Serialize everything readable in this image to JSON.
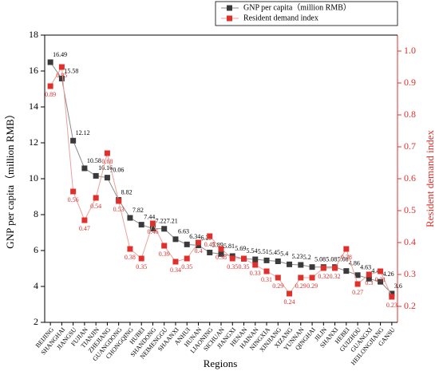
{
  "chart_data": {
    "type": "line",
    "xlabel": "Regions",
    "ylabel": "GNP per capita（million RMB）",
    "y2label": "Resident demand index",
    "categories": [
      "BEIJING",
      "SHANGHAI",
      "JIANGSU",
      "FUJIAN",
      "TIANJIN",
      "ZHEJIANG",
      "GUANGDONG",
      "CHONGQING",
      "HUBEI",
      "SHANDONG",
      "NEIMENGGU",
      "SHAANXI",
      "ANHUI",
      "HUNAN",
      "LIAONING",
      "SICHUAN",
      "JIANGXI",
      "HENAN",
      "HAINAN",
      "NINGXIA",
      "XINJIANG",
      "XIZANG",
      "YUNNAN",
      "QINGHAI",
      "JILIN",
      "SHANXI",
      "HEBEI",
      "GUIZHOU",
      "GUANGXI",
      "HEILONGJIANG",
      "GANSU"
    ],
    "series": [
      {
        "name": "GNP per capita（million RMB）",
        "color": "#3a3a3a",
        "values": [
          16.49,
          15.58,
          12.12,
          10.58,
          10.16,
          10.06,
          8.82,
          7.82,
          7.44,
          7.22,
          7.21,
          6.63,
          6.34,
          6.29,
          5.89,
          5.81,
          5.69,
          5.54,
          5.51,
          5.45,
          5.4,
          5.23,
          5.2,
          5.08,
          5.08,
          5.08,
          4.86,
          4.63,
          4.43,
          4.26,
          3.6
        ]
      },
      {
        "name": "Resident demand index",
        "color": "#e0302c",
        "axis": "y2",
        "values": [
          0.89,
          0.95,
          0.56,
          0.47,
          0.54,
          0.68,
          0.53,
          0.38,
          0.35,
          0.46,
          0.39,
          0.34,
          0.35,
          0.4,
          0.42,
          0.38,
          0.35,
          0.35,
          0.33,
          0.31,
          0.29,
          0.24,
          0.29,
          0.29,
          0.32,
          0.32,
          0.38,
          0.27,
          0.3,
          0.31,
          0.23
        ]
      }
    ],
    "ylim": [
      2,
      18
    ],
    "yticks": [
      2,
      4,
      6,
      8,
      10,
      12,
      14,
      16,
      18
    ],
    "y2lim": [
      0.15,
      1.05
    ],
    "y2ticks": [
      0.2,
      0.3,
      0.4,
      0.5,
      0.6,
      0.7,
      0.8,
      0.9,
      {
        "value": 1,
        "label": "1.0"
      }
    ],
    "legend": "upper right"
  }
}
